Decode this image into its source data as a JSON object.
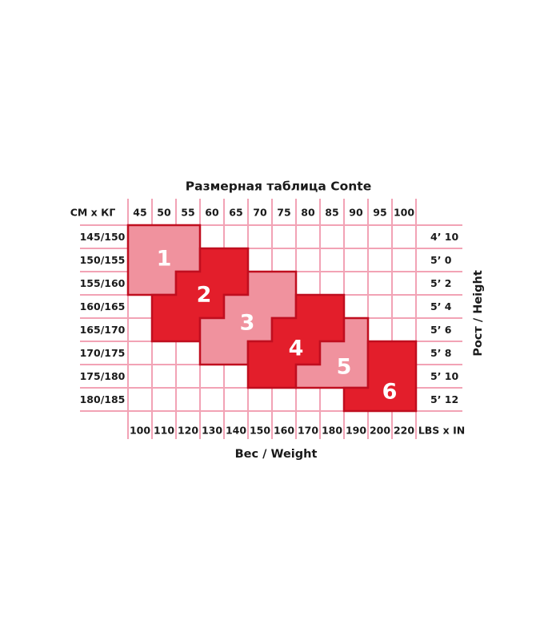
{
  "page": {
    "background": "#ffffff"
  },
  "chart_data": {
    "type": "heatmap",
    "title": "Размерная таблица Conte",
    "corner_top_left": "СМ х КГ",
    "corner_bottom_right": "LBS x IN",
    "xlabel": "Вес / Weight",
    "ylabel": "Рост / Height",
    "weights_kg": [
      45,
      50,
      55,
      60,
      65,
      70,
      75,
      80,
      85,
      90,
      95,
      100
    ],
    "weights_lbs": [
      100,
      110,
      120,
      130,
      140,
      150,
      160,
      170,
      180,
      190,
      200,
      220
    ],
    "heights_cm": [
      "145/150",
      "150/155",
      "155/160",
      "160/165",
      "165/170",
      "170/175",
      "175/180",
      "180/185"
    ],
    "heights_ftin": [
      "4’ 10",
      "5’ 0",
      "5’ 2",
      "5’ 4",
      "5’ 6",
      "5’ 8",
      "5’ 10",
      "5’ 12"
    ],
    "grid": true,
    "legend": "none",
    "colors": {
      "grid_line": "#F2A3B5",
      "size_light": "#F0929E",
      "size_dark": "#E31E2B",
      "region_outline": "#C00E1F",
      "label_text": "#1A1A1A",
      "size_number_text": "#FFFFFF"
    },
    "sizes": [
      {
        "label": "1",
        "tone": "light",
        "cells": [
          [
            "145/150",
            45,
            55
          ],
          [
            "150/155",
            45,
            55
          ],
          [
            "155/160",
            45,
            50
          ]
        ]
      },
      {
        "label": "2",
        "tone": "dark",
        "cells": [
          [
            "150/155",
            60,
            65
          ],
          [
            "155/160",
            55,
            65
          ],
          [
            "160/165",
            50,
            60
          ],
          [
            "165/170",
            50,
            55
          ]
        ]
      },
      {
        "label": "3",
        "tone": "light",
        "cells": [
          [
            "155/160",
            70,
            75
          ],
          [
            "160/165",
            65,
            75
          ],
          [
            "165/170",
            60,
            70
          ],
          [
            "170/175",
            60,
            65
          ]
        ]
      },
      {
        "label": "4",
        "tone": "dark",
        "cells": [
          [
            "160/165",
            80,
            85
          ],
          [
            "165/170",
            75,
            85
          ],
          [
            "170/175",
            70,
            80
          ],
          [
            "175/180",
            70,
            75
          ]
        ]
      },
      {
        "label": "5",
        "tone": "light",
        "cells": [
          [
            "165/170",
            90,
            90
          ],
          [
            "170/175",
            85,
            90
          ],
          [
            "175/180",
            80,
            90
          ]
        ]
      },
      {
        "label": "6",
        "tone": "dark",
        "cells": [
          [
            "170/175",
            95,
            100
          ],
          [
            "175/180",
            95,
            100
          ],
          [
            "180/185",
            90,
            100
          ]
        ]
      }
    ]
  }
}
